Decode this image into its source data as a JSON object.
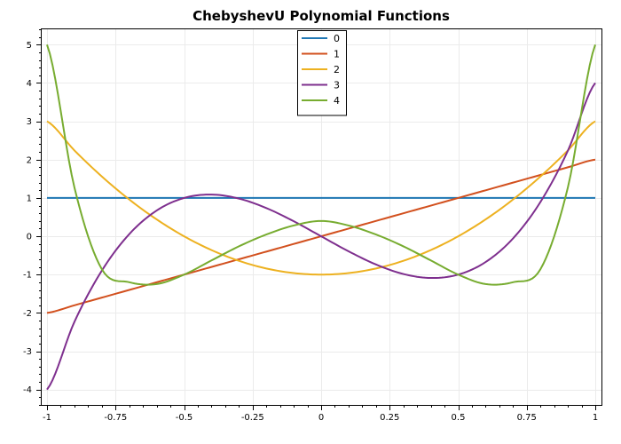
{
  "chart_data": {
    "type": "line",
    "title": "ChebyshevU Polynomial Functions",
    "xlabel": "",
    "ylabel": "",
    "xlim": [
      -1,
      1
    ],
    "ylim": [
      -4.4,
      5.4
    ],
    "xticks": [
      -1,
      -0.75,
      -0.5,
      -0.25,
      0,
      0.25,
      0.5,
      0.75,
      1
    ],
    "xtick_labels": [
      "-1",
      "-0.75",
      "-0.5",
      "-0.25",
      "0",
      "0.25",
      "0.5",
      "0.75",
      "1"
    ],
    "yticks": [
      -4,
      -3,
      -2,
      -1,
      0,
      1,
      2,
      3,
      4,
      5
    ],
    "ytick_labels": [
      "-4",
      "-3",
      "-2",
      "-1",
      "0",
      "1",
      "2",
      "3",
      "4",
      "5"
    ],
    "grid": true,
    "legend_position": "top-center",
    "x": [
      -1,
      -0.9,
      -0.8,
      -0.7,
      -0.6,
      -0.5,
      -0.4,
      -0.3,
      -0.2,
      -0.1,
      0,
      0.1,
      0.2,
      0.3,
      0.4,
      0.5,
      0.6,
      0.7,
      0.8,
      0.9,
      1
    ],
    "series": [
      {
        "name": "0",
        "color": "#1f77b4",
        "values": [
          1,
          1,
          1,
          1,
          1,
          1,
          1,
          1,
          1,
          1,
          1,
          1,
          1,
          1,
          1,
          1,
          1,
          1,
          1,
          1,
          1
        ]
      },
      {
        "name": "1",
        "color": "#d2501e",
        "values": [
          -2,
          -1.8,
          -1.6,
          -1.4,
          -1.2,
          -1,
          -0.8,
          -0.6,
          -0.4,
          -0.2,
          0,
          0.2,
          0.4,
          0.6,
          0.8,
          1,
          1.2,
          1.4,
          1.6,
          1.8,
          2
        ]
      },
      {
        "name": "2",
        "color": "#edb120",
        "values": [
          3,
          2.24,
          1.56,
          0.96,
          0.44,
          0,
          -0.36,
          -0.64,
          -0.84,
          -0.96,
          -1,
          -0.96,
          -0.84,
          -0.64,
          -0.36,
          0,
          0.44,
          0.96,
          1.56,
          2.24,
          3
        ]
      },
      {
        "name": "3",
        "color": "#7e2f8e",
        "values": [
          -4,
          -2.232,
          -0.896,
          0.056,
          0.672,
          1,
          1.088,
          0.984,
          0.736,
          0.392,
          0,
          -0.392,
          -0.736,
          -0.984,
          -1.088,
          -1,
          -0.672,
          -0.056,
          0.896,
          2.232,
          4
        ]
      },
      {
        "name": "4",
        "color": "#77ac30",
        "values": [
          5,
          1.2736,
          -0.8592,
          -1.1984,
          -1.2464,
          -1,
          -0.6304,
          -0.2624,
          0.0464,
          0.2816,
          0.4,
          0.2816,
          0.0464,
          -0.2624,
          -0.6304,
          -1,
          -1.2464,
          -1.1984,
          -0.8592,
          1.2736,
          5
        ]
      }
    ]
  }
}
